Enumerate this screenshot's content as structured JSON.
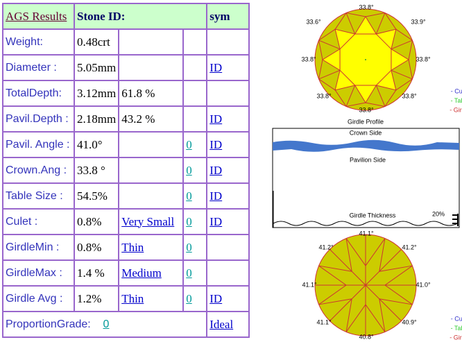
{
  "table": {
    "header": [
      "AGS Results",
      "Stone ID:",
      "sym"
    ],
    "rows": [
      [
        "Weight:",
        "0.48crt"
      ],
      [
        "Diameter :",
        "5.05mm",
        "ID"
      ],
      [
        "TotalDepth:",
        "3.12mm",
        "61.8 %"
      ],
      [
        "Pavil.Depth :",
        "2.18mm",
        "43.2 %",
        "ID"
      ],
      [
        "Pavil. Angle :",
        "41.0°",
        "0",
        "ID"
      ],
      [
        "Crown.Ang :",
        "33.8 °",
        "0",
        "ID"
      ],
      [
        "Table Size :",
        "54.5%",
        "0",
        "ID"
      ],
      [
        "Culet :",
        "0.8%",
        "Very Small",
        "0",
        "ID"
      ],
      [
        "GirdleMin :",
        "0.8%",
        "Thin",
        "0"
      ],
      [
        "GirdleMax :",
        "1.4 %",
        "Medium",
        "0"
      ],
      [
        "Girdle Avg :",
        "1.2%",
        "Thin",
        "0",
        "ID"
      ],
      [
        "ProportionGrade:",
        "0",
        "Ideal"
      ]
    ]
  },
  "crown_diagram": {
    "angles": [
      "33.8°",
      "33.6°",
      "33.9°",
      "33.8°",
      "33.8°",
      "33.8°",
      "33.8°",
      "33.8°"
    ],
    "caption": "Girdle Profile",
    "legend": [
      "- Culet",
      "- Table",
      "- Girdle"
    ]
  },
  "profile": {
    "crown_label": "Crown Side",
    "pavilion_label": "Pavilion Side",
    "thickness_label": "Girdle Thickness",
    "percent": "20%"
  },
  "pavilion_diagram": {
    "angles": [
      "41.1°",
      "41.2°",
      "41.2°",
      "41.1°",
      "41.0°",
      "41.1°",
      "40.9°",
      "40.8°"
    ],
    "legend": [
      "- Culet",
      "- Table",
      "- Girdle"
    ]
  }
}
